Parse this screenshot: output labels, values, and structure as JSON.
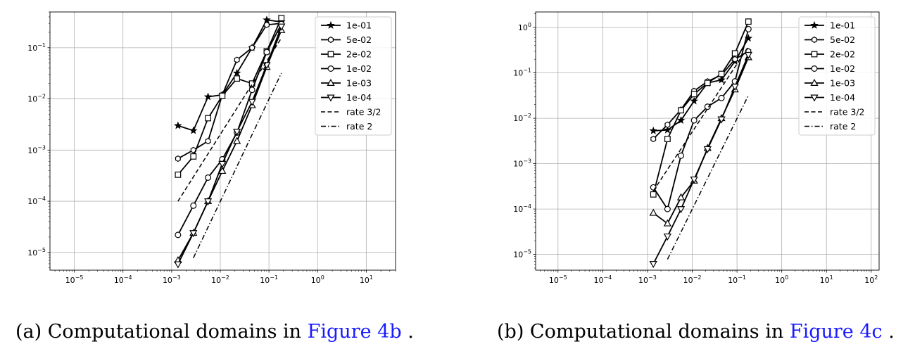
{
  "chart_data": [
    {
      "type": "line",
      "xscale": "log",
      "yscale": "log",
      "xlim": [
        3.16e-06,
        40
      ],
      "ylim": [
        4.5e-06,
        0.5
      ],
      "xticks": [
        {
          "v": 1e-05,
          "base": "10",
          "exp": "−5"
        },
        {
          "v": 0.0001,
          "base": "10",
          "exp": "−4"
        },
        {
          "v": 0.001,
          "base": "10",
          "exp": "−3"
        },
        {
          "v": 0.01,
          "base": "10",
          "exp": "−2"
        },
        {
          "v": 0.1,
          "base": "10",
          "exp": "−1"
        },
        {
          "v": 1,
          "base": "10",
          "exp": "0"
        },
        {
          "v": 10,
          "base": "10",
          "exp": "1"
        }
      ],
      "yticks": [
        {
          "v": 1e-05,
          "base": "10",
          "exp": "−5"
        },
        {
          "v": 0.0001,
          "base": "10",
          "exp": "−4"
        },
        {
          "v": 0.001,
          "base": "10",
          "exp": "−3"
        },
        {
          "v": 0.01,
          "base": "10",
          "exp": "−2"
        },
        {
          "v": 0.1,
          "base": "10",
          "exp": "−1"
        }
      ],
      "grid": true,
      "legend_position": "top-right",
      "series": [
        {
          "name": "1e-01",
          "marker": "star",
          "x": [
            0.00135,
            0.0028,
            0.0056,
            0.011,
            0.022,
            0.045,
            0.09,
            0.18
          ],
          "y": [
            0.003,
            0.0024,
            0.011,
            0.012,
            0.032,
            0.1,
            0.35,
            0.32
          ]
        },
        {
          "name": "5e-02",
          "marker": "hexagon",
          "x": [
            0.00135,
            0.0028,
            0.0056,
            0.011,
            0.022,
            0.045,
            0.09,
            0.18
          ],
          "y": [
            0.00068,
            0.001,
            0.0015,
            0.012,
            0.058,
            0.1,
            0.28,
            0.3
          ]
        },
        {
          "name": "2e-02",
          "marker": "square",
          "x": [
            0.00135,
            0.0028,
            0.0056,
            0.011,
            0.022,
            0.045,
            0.09,
            0.18
          ],
          "y": [
            0.00033,
            0.00075,
            0.0042,
            0.0115,
            0.025,
            0.02,
            0.085,
            0.38
          ]
        },
        {
          "name": "1e-02",
          "marker": "circle",
          "x": [
            0.00135,
            0.0028,
            0.0056,
            0.011,
            0.022,
            0.045,
            0.09,
            0.18
          ],
          "y": [
            2.2e-05,
            8.2e-05,
            0.00029,
            0.00066,
            0.0022,
            0.015,
            0.082,
            0.29
          ]
        },
        {
          "name": "1e-03",
          "marker": "triangle-up",
          "x": [
            0.00135,
            0.0028,
            0.0056,
            0.011,
            0.022,
            0.045,
            0.09,
            0.18
          ],
          "y": [
            7e-06,
            2.4e-05,
            0.0001,
            0.00039,
            0.0015,
            0.0075,
            0.042,
            0.22
          ]
        },
        {
          "name": "1e-04",
          "marker": "triangle-down",
          "x": [
            0.00135,
            0.0028,
            0.0056,
            0.011,
            0.022,
            0.045,
            0.09,
            0.18
          ],
          "y": [
            5.9e-06,
            2.4e-05,
            0.0001,
            0.00054,
            0.0023,
            0.0088,
            0.046,
            0.26
          ]
        },
        {
          "name": "rate 3/2",
          "style": "dashed",
          "x": [
            0.00135,
            0.18
          ],
          "y": [
            0.0001,
            0.155
          ]
        },
        {
          "name": "rate 2",
          "style": "dashdot",
          "x": [
            0.0028,
            0.18
          ],
          "y": [
            7.8e-06,
            0.032
          ]
        }
      ]
    },
    {
      "type": "line",
      "xscale": "log",
      "yscale": "log",
      "xlim": [
        3.16e-06,
        150
      ],
      "ylim": [
        4.5e-06,
        2.2
      ],
      "xticks": [
        {
          "v": 1e-05,
          "base": "10",
          "exp": "−5"
        },
        {
          "v": 0.0001,
          "base": "10",
          "exp": "−4"
        },
        {
          "v": 0.001,
          "base": "10",
          "exp": "−3"
        },
        {
          "v": 0.01,
          "base": "10",
          "exp": "−2"
        },
        {
          "v": 0.1,
          "base": "10",
          "exp": "−1"
        },
        {
          "v": 1,
          "base": "10",
          "exp": "0"
        },
        {
          "v": 10,
          "base": "10",
          "exp": "1"
        },
        {
          "v": 100,
          "base": "10",
          "exp": "2"
        }
      ],
      "yticks": [
        {
          "v": 1e-05,
          "base": "10",
          "exp": "−5"
        },
        {
          "v": 0.0001,
          "base": "10",
          "exp": "−4"
        },
        {
          "v": 0.001,
          "base": "10",
          "exp": "−3"
        },
        {
          "v": 0.01,
          "base": "10",
          "exp": "−2"
        },
        {
          "v": 0.1,
          "base": "10",
          "exp": "−1"
        },
        {
          "v": 1,
          "base": "10",
          "exp": "0"
        }
      ],
      "grid": true,
      "legend_position": "top-right",
      "series": [
        {
          "name": "1e-01",
          "marker": "star",
          "x": [
            0.00135,
            0.0028,
            0.0056,
            0.011,
            0.022,
            0.045,
            0.09,
            0.18
          ],
          "y": [
            0.0053,
            0.0055,
            0.009,
            0.024,
            0.06,
            0.07,
            0.18,
            0.58
          ]
        },
        {
          "name": "5e-02",
          "marker": "hexagon",
          "x": [
            0.00135,
            0.0028,
            0.0056,
            0.011,
            0.022,
            0.045,
            0.09,
            0.18
          ],
          "y": [
            0.0035,
            0.0072,
            0.0155,
            0.04,
            0.065,
            0.09,
            0.2,
            0.3
          ]
        },
        {
          "name": "2e-02",
          "marker": "square",
          "x": [
            0.00135,
            0.0028,
            0.0056,
            0.011,
            0.022,
            0.045,
            0.09,
            0.18
          ],
          "y": [
            0.00021,
            0.0035,
            0.015,
            0.034,
            0.06,
            0.095,
            0.27,
            1.35
          ]
        },
        {
          "name": "1e-02",
          "marker": "circle",
          "x": [
            0.00135,
            0.0028,
            0.0056,
            0.011,
            0.022,
            0.045,
            0.09,
            0.18
          ],
          "y": [
            0.0003,
            0.0001,
            0.0015,
            0.009,
            0.018,
            0.028,
            0.065,
            0.92
          ]
        },
        {
          "name": "1e-03",
          "marker": "triangle-up",
          "x": [
            0.00135,
            0.0028,
            0.0056,
            0.011,
            0.022,
            0.045,
            0.09,
            0.18
          ],
          "y": [
            8.2e-05,
            4.8e-05,
            0.00018,
            0.00042,
            0.0022,
            0.01,
            0.043,
            0.22
          ]
        },
        {
          "name": "1e-04",
          "marker": "triangle-down",
          "x": [
            0.00135,
            0.0028,
            0.0056,
            0.011,
            0.022,
            0.045,
            0.09,
            0.18
          ],
          "y": [
            6.2e-06,
            2.5e-05,
            0.0001,
            0.00045,
            0.0021,
            0.0095,
            0.05,
            0.25
          ]
        },
        {
          "name": "rate 3/2",
          "style": "dashed",
          "x": [
            0.00135,
            0.18
          ],
          "y": [
            0.00025,
            0.38
          ]
        },
        {
          "name": "rate 2",
          "style": "dashdot",
          "x": [
            0.0028,
            0.18
          ],
          "y": [
            7.8e-06,
            0.032
          ]
        }
      ]
    }
  ],
  "captions": [
    {
      "label": "(a) Computational domains in",
      "link": "Figure 4b",
      "end": "."
    },
    {
      "label": "(b) Computational domains in",
      "link": "Figure 4c",
      "end": "."
    }
  ]
}
